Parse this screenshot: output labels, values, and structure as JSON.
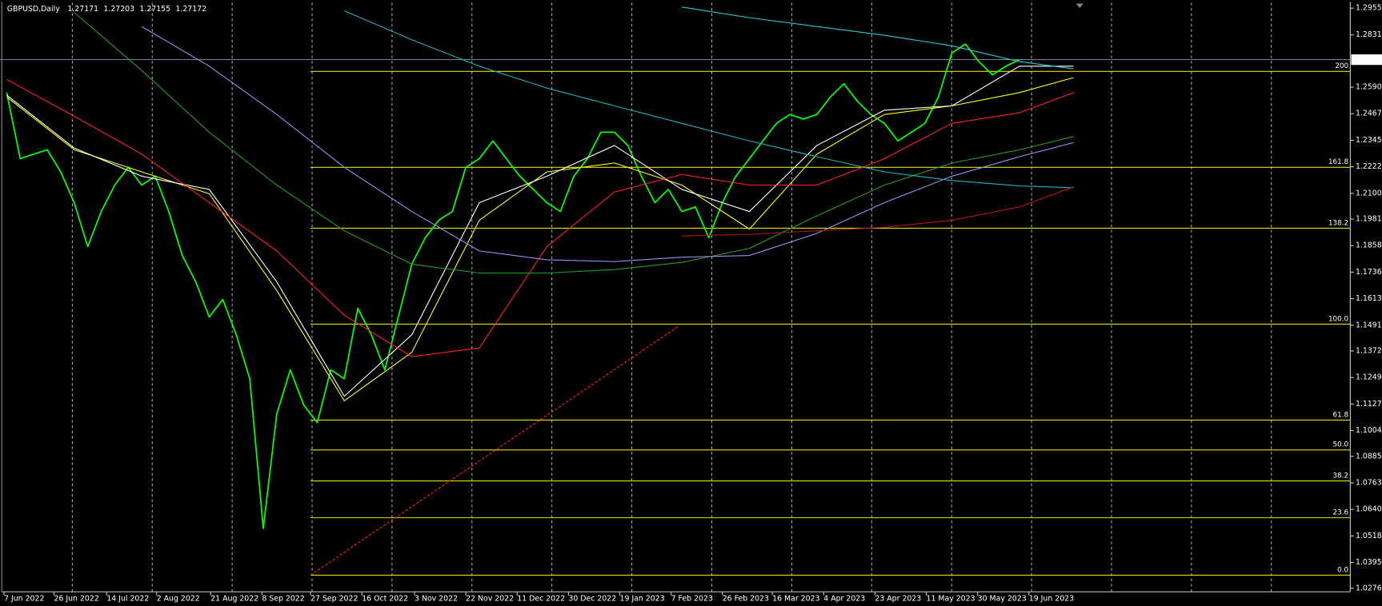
{
  "chart_data": {
    "type": "line",
    "title": "GBPUSD,Daily",
    "ohlc": [
      1.27171,
      1.27203,
      1.27155,
      1.27172
    ],
    "xlim": [
      -0.5,
      99.5
    ],
    "xticks": [
      {
        "value": -0.2,
        "label": "7 Jun 2022"
      },
      {
        "value": 3.5,
        "label": "26 Jun 2022"
      },
      {
        "value": 7.4,
        "label": "14 Jul 2022"
      },
      {
        "value": 11.1,
        "label": "2 Aug 2022"
      },
      {
        "value": 15.1,
        "label": "21 Aug 2022"
      },
      {
        "value": 18.9,
        "label": "8 Sep 2022"
      },
      {
        "value": 22.5,
        "label": "27 Sep 2022"
      },
      {
        "value": 26.3,
        "label": "16 Oct 2022"
      },
      {
        "value": 30.2,
        "label": "3 Nov 2022"
      },
      {
        "value": 34.0,
        "label": "22 Nov 2022"
      },
      {
        "value": 37.8,
        "label": "11 Dec 2022"
      },
      {
        "value": 41.6,
        "label": "30 Dec 2022"
      },
      {
        "value": 45.4,
        "label": "19 Jan 2023"
      },
      {
        "value": 49.2,
        "label": "7 Feb 2023"
      },
      {
        "value": 53.0,
        "label": "26 Feb 2023"
      },
      {
        "value": 56.7,
        "label": "16 Mar 2023"
      },
      {
        "value": 60.5,
        "label": "4 Apr 2023"
      },
      {
        "value": 64.3,
        "label": "23 Apr 2023"
      },
      {
        "value": 68.1,
        "label": "11 May 2023"
      },
      {
        "value": 71.9,
        "label": "30 May 2023"
      },
      {
        "value": 75.7,
        "label": "19 Jun 2023"
      }
    ],
    "ylim": [
      1.026,
      1.298
    ],
    "yticks": [
      {
        "value": 1.2955,
        "label": "1.29550"
      },
      1.28315,
      {
        "value": 1.259,
        "label": "1.25900"
      },
      1.24675,
      {
        "value": 1.2345,
        "label": "1.23450"
      },
      1.22225,
      {
        "value": 1.21,
        "label": "1.21000"
      },
      {
        "value": 1.1981,
        "label": "1.19810"
      },
      1.18585,
      {
        "value": 1.1736,
        "label": "1.17360"
      },
      1.16135,
      {
        "value": 1.1491,
        "label": "1.14910"
      },
      {
        "value": 1.1372,
        "label": "1.13720"
      },
      1.12495,
      {
        "value": 1.1127,
        "label": "1.11270"
      },
      1.10045,
      1.08855,
      {
        "value": 1.0763,
        "label": "1.07630"
      },
      1.06405,
      {
        "value": 1.0518,
        "label": "1.05180"
      },
      1.03955,
      1.02765
    ],
    "bid": 1.27172,
    "series": [
      {
        "color": "#00ff00",
        "values": [
          1.2565,
          1.226,
          1.2281,
          1.2301,
          1.2199,
          1.2057,
          1.1854,
          1.2016,
          1.2138,
          1.222,
          1.2138,
          1.2179,
          1.2016,
          1.1813,
          1.1691,
          1.1529,
          1.161,
          1.1447,
          1.1244,
          1.0553,
          1.1081,
          1.1285,
          1.1122,
          1.1041,
          1.1285,
          1.1244,
          1.1569,
          1.1447,
          1.1285,
          1.1529,
          1.1773,
          1.1895,
          1.1976,
          1.2016,
          1.222,
          1.226,
          1.2342,
          1.226,
          1.2179,
          1.2118,
          1.2057,
          1.2016,
          1.2179,
          1.226,
          1.2382,
          1.2382,
          1.2321,
          1.2179,
          1.2057,
          1.2118,
          1.2016,
          1.2037,
          1.1895,
          1.2057,
          1.2179,
          1.226,
          1.2342,
          1.2423,
          1.2464,
          1.2443,
          1.2464,
          1.2545,
          1.2606,
          1.2525,
          1.2464,
          1.2423,
          1.2342,
          1.2382,
          1.2423,
          1.2545,
          1.2748,
          1.2789,
          1.2708,
          1.2647,
          1.2687,
          1.2717
        ]
      },
      {
        "color": "#ffff00",
        "x": [
          0,
          5,
          10,
          15,
          20,
          25,
          30,
          35,
          40,
          45,
          50,
          55,
          60,
          65,
          70,
          75,
          79
        ],
        "values": [
          1.2545,
          1.2301,
          1.2199,
          1.2098,
          1.1651,
          1.1142,
          1.1366,
          1.1976,
          1.2199,
          1.224,
          1.2138,
          1.1935,
          1.2281,
          1.2464,
          1.2504,
          1.2565,
          1.2634
        ]
      },
      {
        "color": "#ffffff",
        "x": [
          0,
          5,
          10,
          15,
          20,
          25,
          30,
          35,
          40,
          45,
          50,
          55,
          60,
          65,
          70,
          75,
          79
        ],
        "values": [
          1.2553,
          1.2309,
          1.2179,
          1.2118,
          1.1691,
          1.1163,
          1.1447,
          1.2057,
          1.2179,
          1.2321,
          1.2118,
          1.2016,
          1.2321,
          1.2484,
          1.2504,
          1.2687,
          1.2687
        ]
      },
      {
        "color": "#ff2020",
        "x": [
          0,
          5,
          10,
          15,
          20,
          25,
          30,
          35,
          40,
          45,
          50,
          55,
          60,
          65,
          70,
          75,
          79
        ],
        "values": [
          1.2626,
          1.2456,
          1.2281,
          1.2057,
          1.1834,
          1.1537,
          1.1346,
          1.1386,
          1.1854,
          1.2106,
          1.2187,
          1.2138,
          1.2138,
          1.226,
          1.2423,
          1.2472,
          1.2565
        ]
      },
      {
        "color": "#1e9e1e",
        "x": [
          0,
          5,
          10,
          15,
          20,
          25,
          30,
          35,
          40,
          45,
          50,
          55,
          60,
          65,
          70,
          75,
          79
        ],
        "values": [
          null,
          1.2935,
          1.2667,
          1.2382,
          1.2138,
          1.1927,
          1.1773,
          1.1732,
          1.1732,
          1.1748,
          1.1781,
          1.1846,
          1.1996,
          1.2138,
          1.224,
          1.2301,
          1.2362
        ]
      },
      {
        "color": "#9a8cf0",
        "x": [
          0,
          5,
          10,
          15,
          20,
          25,
          30,
          35,
          40,
          45,
          50,
          55,
          60,
          65,
          70,
          75,
          79
        ],
        "values": [
          null,
          null,
          1.287,
          1.2687,
          1.2464,
          1.222,
          1.2016,
          1.1834,
          1.1793,
          1.1785,
          1.1805,
          1.1813,
          1.1915,
          1.2057,
          1.2179,
          1.2269,
          1.2334
        ]
      },
      {
        "color": "#20b0c0",
        "x": [
          0,
          5,
          10,
          15,
          20,
          25,
          30,
          35,
          40,
          45,
          50,
          55,
          60,
          65,
          70,
          75,
          79
        ],
        "values": [
          null,
          null,
          null,
          null,
          null,
          1.2943,
          1.2809,
          1.2687,
          1.2586,
          1.2504,
          1.2423,
          1.2342,
          1.2269,
          1.2199,
          1.2159,
          1.2134,
          1.2126
        ]
      },
      {
        "color": "#30c8d8",
        "x": [
          0,
          5,
          10,
          15,
          20,
          25,
          30,
          35,
          40,
          45,
          50,
          55,
          60,
          65,
          70,
          75,
          79
        ],
        "values": [
          null,
          null,
          null,
          null,
          null,
          null,
          null,
          null,
          null,
          null,
          1.296,
          1.2911,
          1.287,
          1.283,
          1.2781,
          1.2708,
          1.2675
        ]
      },
      {
        "color": "#b01818",
        "x": [
          0,
          5,
          10,
          15,
          20,
          25,
          30,
          35,
          40,
          45,
          50,
          55,
          60,
          65,
          70,
          75,
          79
        ],
        "values": [
          null,
          null,
          null,
          null,
          null,
          null,
          null,
          null,
          null,
          null,
          1.1903,
          1.1911,
          1.1927,
          1.1943,
          1.1976,
          1.2037,
          1.213
        ]
      }
    ],
    "fibo": {
      "color": "#e0e000",
      "levels": [
        "0.0",
        "23.6",
        "38.2",
        "50.0",
        "61.8",
        "100.0",
        "138.2",
        "161.8",
        "200"
      ],
      "values": [
        1.0337,
        1.0602,
        1.0772,
        1.0915,
        1.1053,
        1.1496,
        1.1939,
        1.222,
        1.2663
      ]
    },
    "trendline": {
      "color": "#ff2020",
      "x": [
        22.5,
        49.8
      ],
      "values": [
        1.0337,
        1.1488
      ]
    }
  }
}
